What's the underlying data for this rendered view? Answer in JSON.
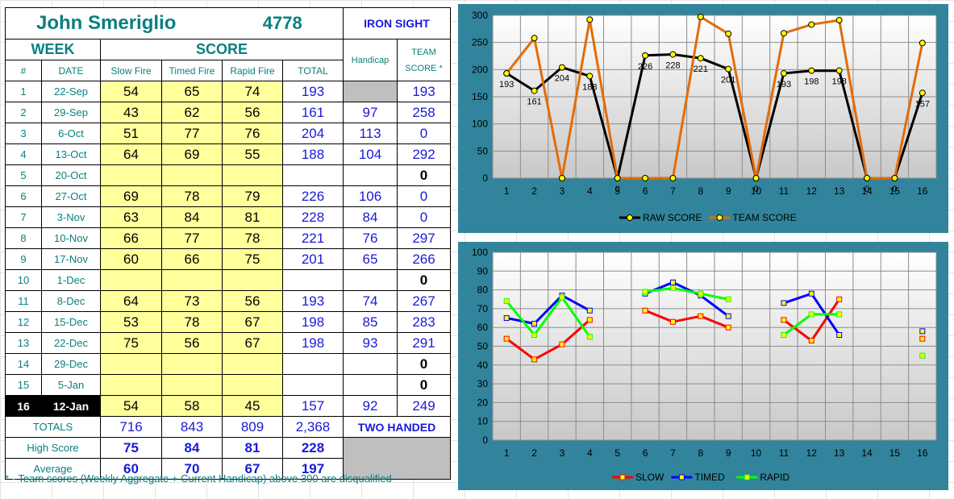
{
  "header": {
    "name": "John Smeriglio",
    "id": "4778",
    "category": "IRON SIGHT"
  },
  "columns": {
    "week": "WEEK",
    "score": "SCORE",
    "num": "#",
    "date": "DATE",
    "slow": "Slow Fire",
    "timed": "Timed Fire",
    "rapid": "Rapid Fire",
    "total": "TOTAL",
    "handicap": "Handicap",
    "team1": "TEAM",
    "team2": "SCORE *"
  },
  "rows": [
    {
      "wk": "1",
      "date": "22-Sep",
      "slow": "54",
      "timed": "65",
      "rapid": "74",
      "total": "193",
      "hcap": "",
      "team": "193"
    },
    {
      "wk": "2",
      "date": "29-Sep",
      "slow": "43",
      "timed": "62",
      "rapid": "56",
      "total": "161",
      "hcap": "97",
      "team": "258"
    },
    {
      "wk": "3",
      "date": "6-Oct",
      "slow": "51",
      "timed": "77",
      "rapid": "76",
      "total": "204",
      "hcap": "113",
      "team": "0"
    },
    {
      "wk": "4",
      "date": "13-Oct",
      "slow": "64",
      "timed": "69",
      "rapid": "55",
      "total": "188",
      "hcap": "104",
      "team": "292"
    },
    {
      "wk": "5",
      "date": "20-Oct",
      "slow": "",
      "timed": "",
      "rapid": "",
      "total": "",
      "hcap": "",
      "team": "0"
    },
    {
      "wk": "6",
      "date": "27-Oct",
      "slow": "69",
      "timed": "78",
      "rapid": "79",
      "total": "226",
      "hcap": "106",
      "team": "0"
    },
    {
      "wk": "7",
      "date": "3-Nov",
      "slow": "63",
      "timed": "84",
      "rapid": "81",
      "total": "228",
      "hcap": "84",
      "team": "0"
    },
    {
      "wk": "8",
      "date": "10-Nov",
      "slow": "66",
      "timed": "77",
      "rapid": "78",
      "total": "221",
      "hcap": "76",
      "team": "297"
    },
    {
      "wk": "9",
      "date": "17-Nov",
      "slow": "60",
      "timed": "66",
      "rapid": "75",
      "total": "201",
      "hcap": "65",
      "team": "266"
    },
    {
      "wk": "10",
      "date": "1-Dec",
      "slow": "",
      "timed": "",
      "rapid": "",
      "total": "",
      "hcap": "",
      "team": "0"
    },
    {
      "wk": "11",
      "date": "8-Dec",
      "slow": "64",
      "timed": "73",
      "rapid": "56",
      "total": "193",
      "hcap": "74",
      "team": "267"
    },
    {
      "wk": "12",
      "date": "15-Dec",
      "slow": "53",
      "timed": "78",
      "rapid": "67",
      "total": "198",
      "hcap": "85",
      "team": "283"
    },
    {
      "wk": "13",
      "date": "22-Dec",
      "slow": "75",
      "timed": "56",
      "rapid": "67",
      "total": "198",
      "hcap": "93",
      "team": "291"
    },
    {
      "wk": "14",
      "date": "29-Dec",
      "slow": "",
      "timed": "",
      "rapid": "",
      "total": "",
      "hcap": "",
      "team": "0"
    },
    {
      "wk": "15",
      "date": "5-Jan",
      "slow": "",
      "timed": "",
      "rapid": "",
      "total": "",
      "hcap": "",
      "team": "0"
    },
    {
      "wk": "16",
      "date": "12-Jan",
      "slow": "54",
      "timed": "58",
      "rapid": "45",
      "total": "157",
      "hcap": "92",
      "team": "249"
    }
  ],
  "totals": {
    "label": "TOTALS",
    "slow": "716",
    "timed": "843",
    "rapid": "809",
    "total": "2,368",
    "note": "TWO HANDED"
  },
  "high": {
    "label": "High Score",
    "slow": "75",
    "timed": "84",
    "rapid": "81",
    "total": "228"
  },
  "average": {
    "label": "Average",
    "slow": "60",
    "timed": "70",
    "rapid": "67",
    "total": "197"
  },
  "footnote": "* - Team scores (Weekly Aggregate + Current Handicap) above 300 are disqualified",
  "colors": {
    "frame": "#31849b",
    "raw": "#000000",
    "team": "#e36c0a",
    "slow": "#ff0000",
    "timed": "#0000ff",
    "rapid": "#00ff00",
    "marker": "#ffff00"
  },
  "chart_data": [
    {
      "type": "line",
      "x": [
        "1",
        "2",
        "3",
        "4",
        "5",
        "6",
        "7",
        "8",
        "9",
        "10",
        "11",
        "12",
        "13",
        "14",
        "15",
        "16"
      ],
      "ylim": [
        0,
        300
      ],
      "yticks": [
        "0",
        "50",
        "100",
        "150",
        "200",
        "250",
        "300"
      ],
      "series": [
        {
          "name": "RAW SCORE",
          "values": [
            193,
            161,
            204,
            188,
            0,
            226,
            228,
            221,
            201,
            0,
            193,
            198,
            198,
            0,
            0,
            157
          ],
          "labels": [
            "193",
            "161",
            "204",
            "188",
            "0",
            "226",
            "228",
            "221",
            "201",
            "0",
            "193",
            "198",
            "198",
            "0",
            "0",
            "157"
          ]
        },
        {
          "name": "TEAM SCORE",
          "values": [
            193,
            258,
            0,
            292,
            0,
            0,
            0,
            297,
            266,
            0,
            267,
            283,
            291,
            0,
            0,
            249
          ]
        }
      ],
      "legend": "bottom"
    },
    {
      "type": "line",
      "x": [
        "1",
        "2",
        "3",
        "4",
        "5",
        "6",
        "7",
        "8",
        "9",
        "10",
        "11",
        "12",
        "13",
        "14",
        "15",
        "16"
      ],
      "ylim": [
        0,
        100
      ],
      "yticks": [
        "0",
        "10",
        "20",
        "30",
        "40",
        "50",
        "60",
        "70",
        "80",
        "90",
        "100"
      ],
      "series": [
        {
          "name": "SLOW",
          "values": [
            54,
            43,
            51,
            64,
            null,
            69,
            63,
            66,
            60,
            null,
            64,
            53,
            75,
            null,
            null,
            54
          ]
        },
        {
          "name": "TIMED",
          "values": [
            65,
            62,
            77,
            69,
            null,
            78,
            84,
            77,
            66,
            null,
            73,
            78,
            56,
            null,
            null,
            58
          ]
        },
        {
          "name": "RAPID",
          "values": [
            74,
            56,
            76,
            55,
            null,
            79,
            81,
            78,
            75,
            null,
            56,
            67,
            67,
            null,
            null,
            45
          ]
        }
      ],
      "legend": "bottom"
    }
  ]
}
